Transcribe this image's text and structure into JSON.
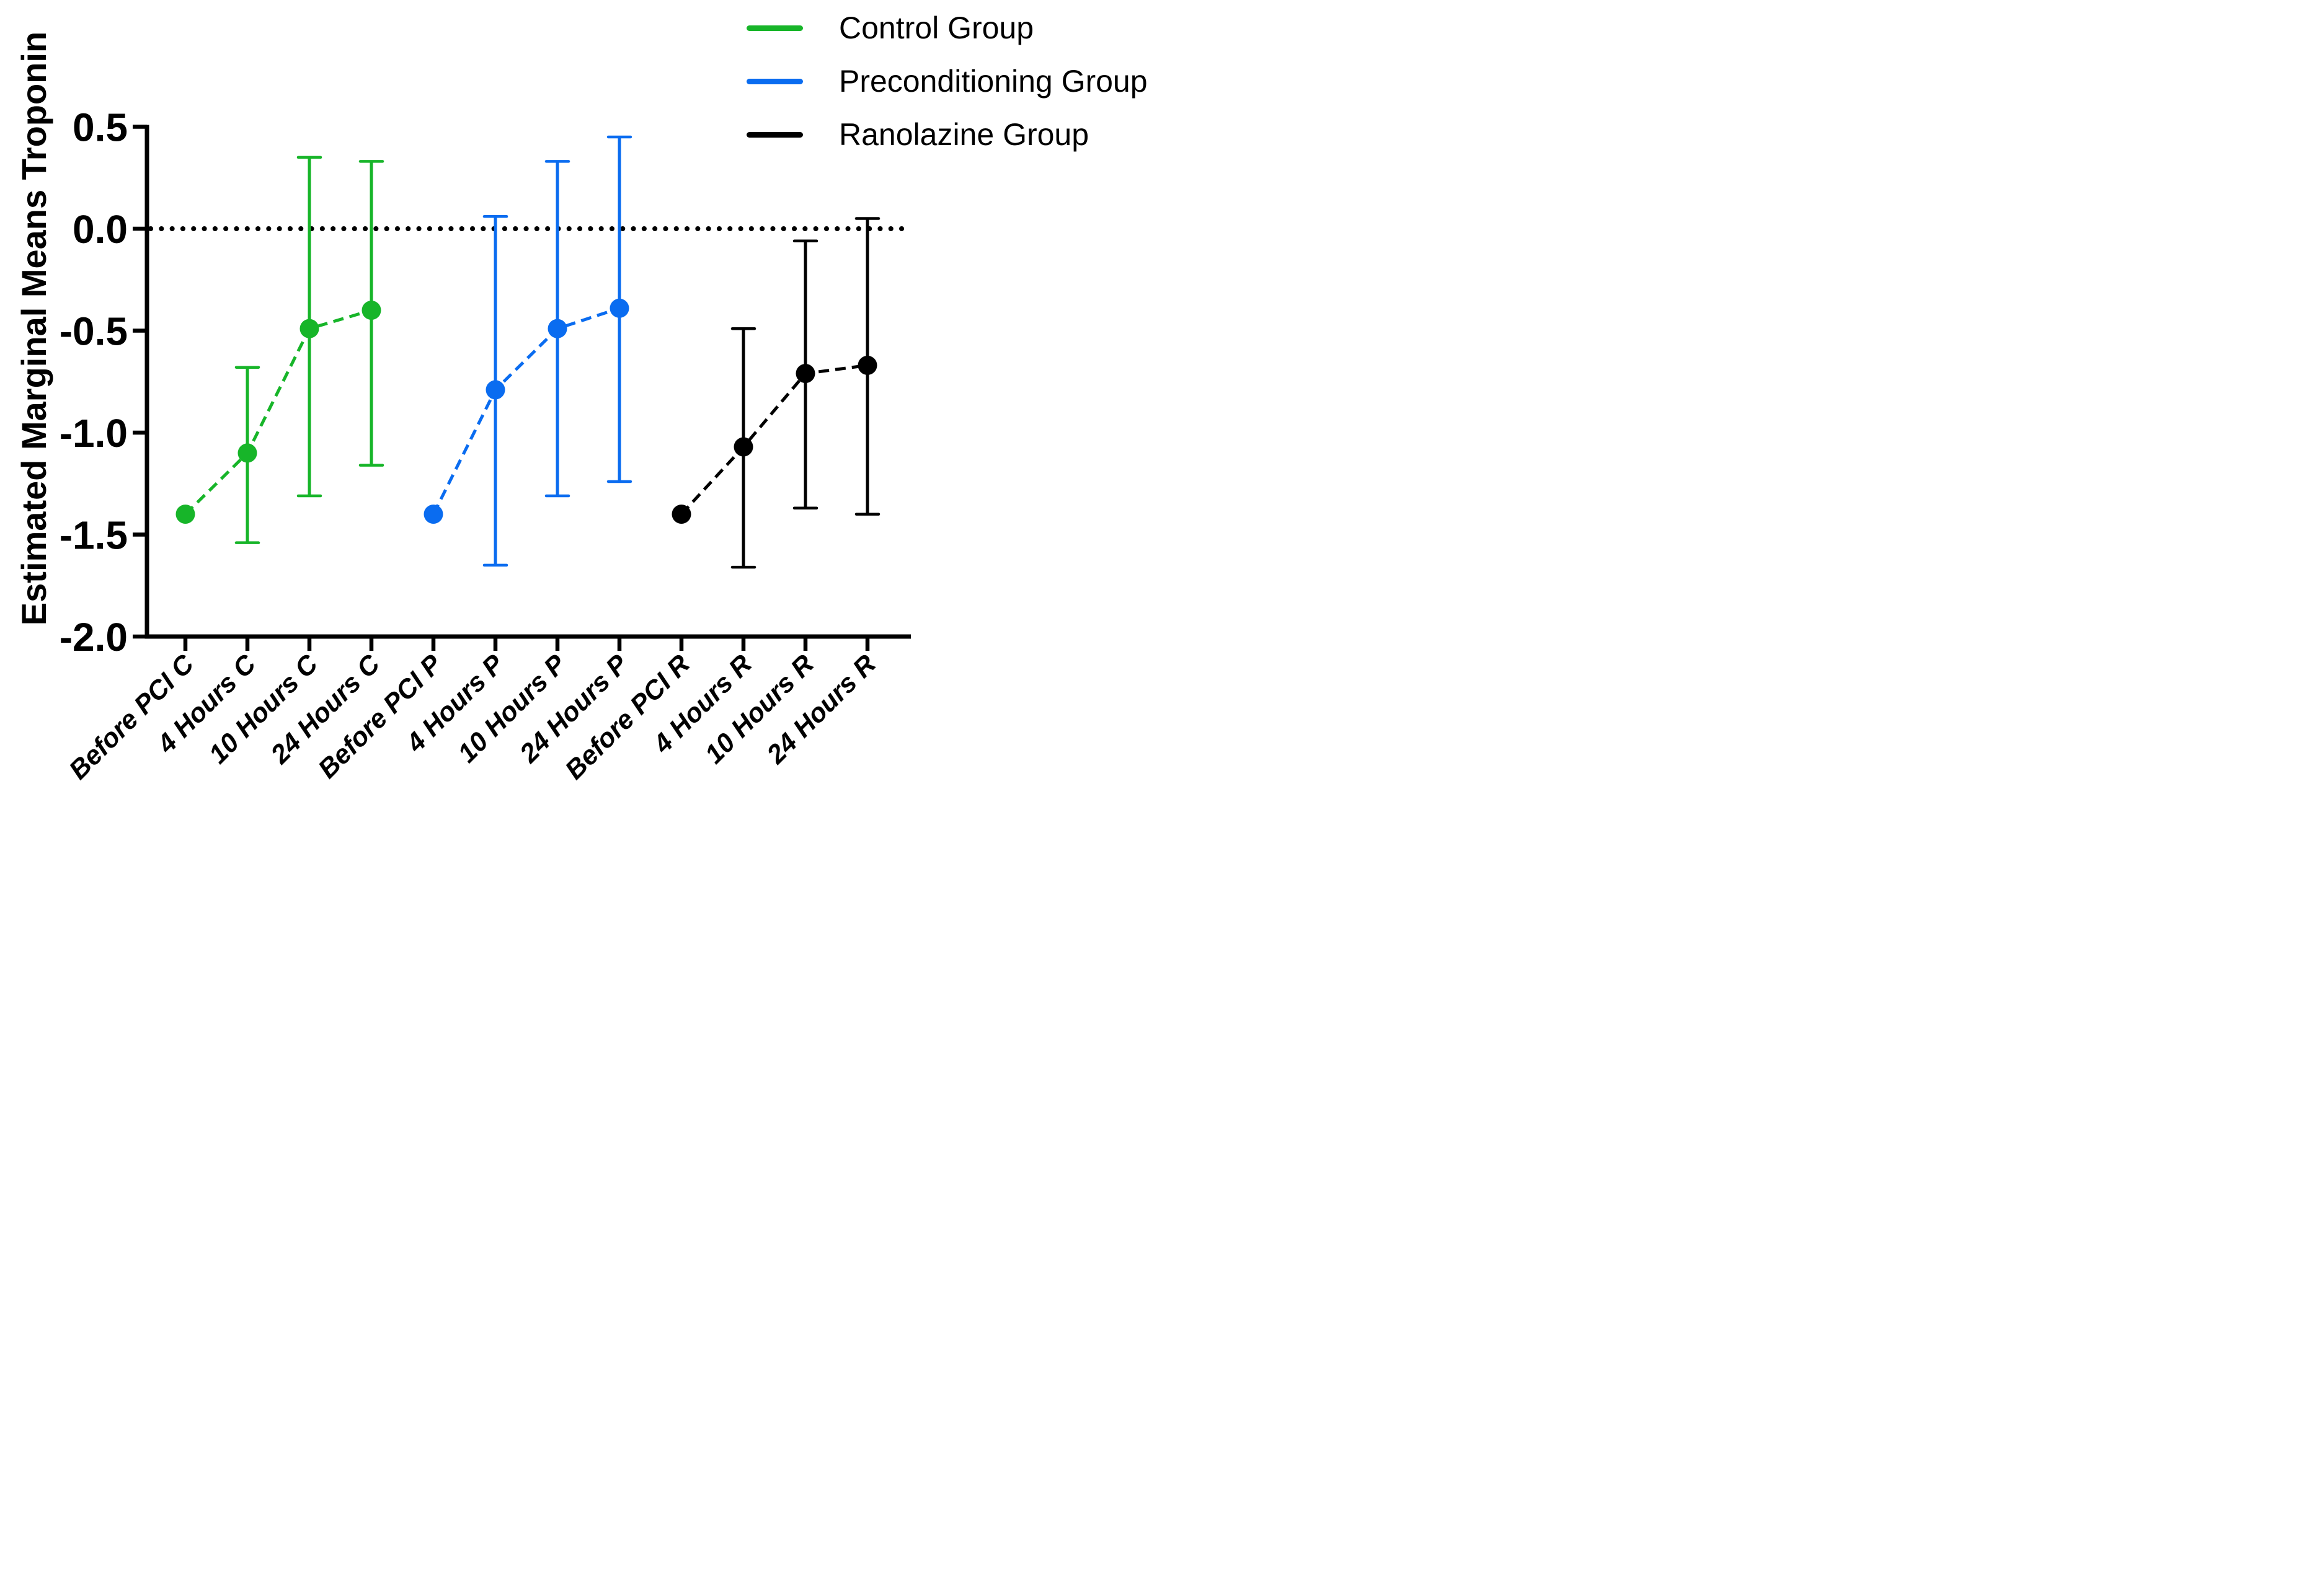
{
  "chart_data": {
    "type": "line",
    "title": "",
    "xlabel": "",
    "ylabel": "Estimated Marginal Means Troponin",
    "ylim": [
      -2.0,
      0.5
    ],
    "yticks": [
      0.5,
      0.0,
      -0.5,
      -1.0,
      -1.5,
      -2.0
    ],
    "ytick_labels": [
      "0.5",
      "0.0",
      "-0.5",
      "-1.0",
      "-1.5",
      "-2.0"
    ],
    "categories": [
      "Before PCI C",
      "4 Hours C",
      "10 Hours C",
      "24 Hours C",
      "Before PCI P",
      "4 Hours P",
      "10 Hours P",
      "24 Hours P",
      "Before PCI R",
      "4 Hours R",
      "10 Hours R",
      "24 Hours R"
    ],
    "reference_line_y": 0.0,
    "grid": false,
    "legend_position": "top-right",
    "marker": "circle",
    "line_style": "dashed",
    "series": [
      {
        "name": "Control Group",
        "color": "#17b529",
        "x_indices": [
          0,
          1,
          2,
          3
        ],
        "values": [
          -1.4,
          -1.1,
          -0.49,
          -0.4
        ],
        "ci_low": [
          null,
          -1.54,
          -1.31,
          -1.16
        ],
        "ci_high": [
          null,
          -0.68,
          0.35,
          0.33
        ]
      },
      {
        "name": "Preconditioning Group",
        "color": "#0a6cf0",
        "x_indices": [
          4,
          5,
          6,
          7
        ],
        "values": [
          -1.4,
          -0.79,
          -0.49,
          -0.39
        ],
        "ci_low": [
          null,
          -1.65,
          -1.31,
          -1.24
        ],
        "ci_high": [
          null,
          0.06,
          0.33,
          0.45
        ]
      },
      {
        "name": "Ranolazine Group",
        "color": "#000000",
        "x_indices": [
          8,
          9,
          10,
          11
        ],
        "values": [
          -1.4,
          -1.07,
          -0.71,
          -0.67
        ],
        "ci_low": [
          null,
          -1.66,
          -1.37,
          -1.4
        ],
        "ci_high": [
          null,
          -0.49,
          -0.06,
          0.05
        ]
      }
    ]
  }
}
